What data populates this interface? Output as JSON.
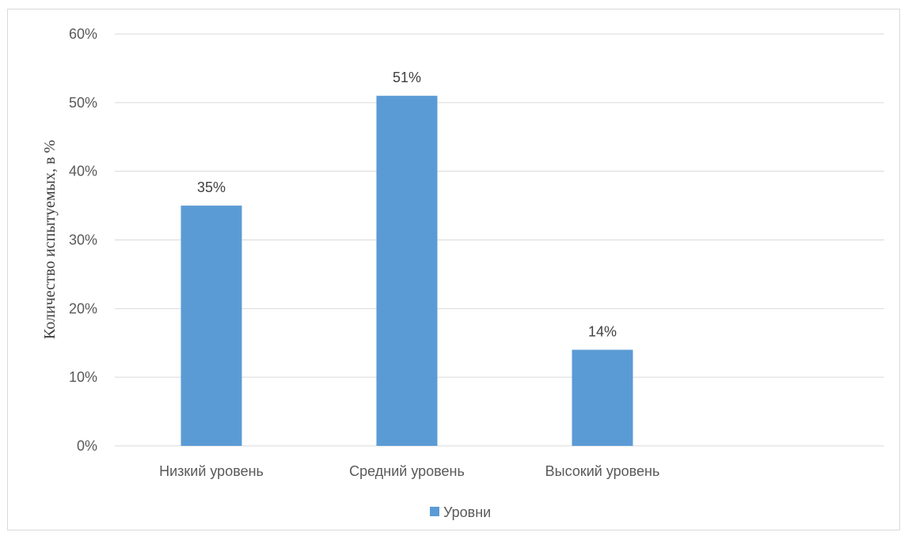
{
  "chart_data": {
    "type": "bar",
    "categories": [
      "Низкий уровень",
      "Средний уровень",
      "Высокий уровень"
    ],
    "series": [
      {
        "name": "Уровни",
        "values": [
          35,
          51,
          14
        ],
        "data_labels": [
          "35%",
          "51%",
          "14%"
        ],
        "color": "#5b9bd5"
      }
    ],
    "ylabel": "Количество испытуемых, в %",
    "xlabel": "",
    "ylim": [
      0,
      60
    ],
    "y_ticks": [
      0,
      10,
      20,
      30,
      40,
      50,
      60
    ],
    "y_tick_labels": [
      "0%",
      "10%",
      "20%",
      "30%",
      "40%",
      "50%",
      "60%"
    ],
    "grid": true,
    "legend_position": "bottom",
    "gridline_color": "#d9d9d9",
    "axis_color": "#d9d9d9"
  }
}
